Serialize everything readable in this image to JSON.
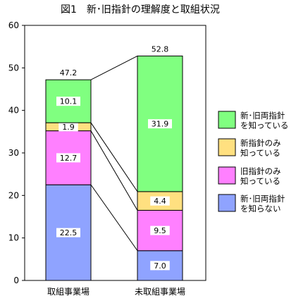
{
  "chart_data": {
    "type": "bar",
    "stacked": true,
    "title": "図1　新･旧指針の理解度と取組状況",
    "categories": [
      "取組事業場",
      "未取組事業場"
    ],
    "series": [
      {
        "name": "新･旧両指針\nを知らない",
        "color": "#8fa3ff",
        "values": [
          22.5,
          7.0
        ],
        "labels": [
          "22.5",
          "7.0"
        ]
      },
      {
        "name": "旧指針のみ\n知っている",
        "color": "#ff80ff",
        "values": [
          12.7,
          9.5
        ],
        "labels": [
          "12.7",
          "9.5"
        ]
      },
      {
        "name": "新指針のみ\n知っている",
        "color": "#ffe080",
        "values": [
          1.9,
          4.4
        ],
        "labels": [
          "1.9",
          "4.4"
        ]
      },
      {
        "name": "新･旧両指針\nを知っている",
        "color": "#80ff80",
        "values": [
          10.1,
          31.9
        ],
        "labels": [
          "10.1",
          "31.9"
        ]
      }
    ],
    "totals": [
      "47.2",
      "52.8"
    ],
    "ylim": [
      0,
      60
    ],
    "yticks": [
      0,
      10,
      20,
      30,
      40,
      50,
      60
    ],
    "grid": false,
    "legend": "right",
    "series_connectors": true
  }
}
